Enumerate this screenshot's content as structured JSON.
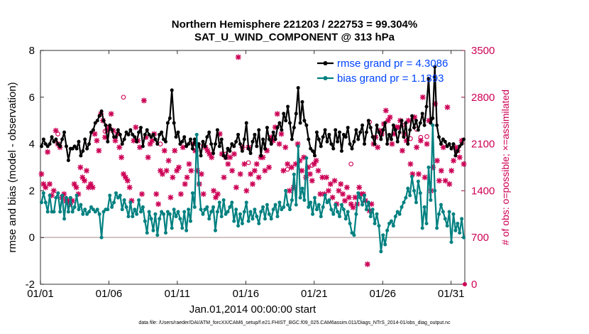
{
  "title_line1": "Northern Hemisphere 221203 / 222753 = 99.304%",
  "title_line2": "SAT_U_WIND_COMPONENT @ 313 hPa",
  "footer": "data file: /Users/raeder/DAI/ATM_forcXX/CAM6_setup/f.e21.FHIST_BGC.f09_025.CAM6assim.011/Diags_NTrS_2014-01/obs_diag_output.nc",
  "colors": {
    "rmse": "#000000",
    "bias": "#008080",
    "obs": "#cc0055",
    "legend_text": "#0044ff",
    "zero_line": "#c8b8b8"
  },
  "chart_data": {
    "type": "line",
    "xlabel": "Jan.01,2014 00:00:00 start",
    "ylabel_left": "rmse and bias (model - observation)",
    "ylabel_right": "# of obs: o=possible; ×=assimilated",
    "x_tick_labels": [
      "01/01",
      "01/06",
      "01/11",
      "01/16",
      "01/21",
      "01/26",
      "01/31"
    ],
    "x_tick_days": [
      1,
      6,
      11,
      16,
      21,
      26,
      31
    ],
    "xlim_days": [
      1,
      32
    ],
    "ylim_left": [
      -2,
      8
    ],
    "y_ticks_left": [
      -2,
      0,
      2,
      4,
      6,
      8
    ],
    "ylim_right": [
      0,
      3500
    ],
    "y_ticks_right": [
      0,
      700,
      1400,
      2100,
      2800,
      3500
    ],
    "grid": false,
    "legend_position": "top-right",
    "series": [
      {
        "name": "rmse grand pr = 4.3086",
        "axis": "left",
        "marker": "dot-line",
        "values": [
          3.9,
          4.2,
          4.0,
          3.9,
          4.0,
          4.3,
          4.1,
          4.2,
          4.0,
          3.9,
          4.2,
          4.5,
          3.9,
          3.3,
          3.8,
          3.8,
          3.9,
          3.8,
          4.1,
          3.5,
          3.7,
          4.2,
          3.8,
          4.0,
          4.5,
          4.6,
          4.9,
          5.0,
          5.2,
          5.4,
          5.0,
          4.8,
          4.1,
          4.8,
          4.6,
          4.3,
          4.3,
          4.6,
          4.4,
          4.0,
          4.2,
          4.5,
          4.4,
          4.6,
          4.4,
          4.3,
          4.1,
          4.5,
          4.7,
          3.9,
          4.4,
          4.6,
          4.4,
          4.3,
          4.4,
          4.2,
          4.0,
          4.4,
          4.5,
          4.2,
          4.1,
          4.9,
          5.1,
          6.3,
          4.9,
          4.3,
          4.5,
          4.0,
          4.1,
          4.3,
          3.9,
          4.0,
          4.2,
          3.8,
          4.2,
          3.7,
          4.0,
          3.5,
          4.1,
          3.9,
          4.3,
          4.5,
          4.0,
          3.6,
          4.0,
          4.6,
          3.9,
          4.2,
          3.5,
          3.4,
          3.8,
          3.7,
          4.0,
          3.9,
          4.1,
          4.4,
          4.0,
          3.7,
          4.2,
          4.9,
          3.8,
          3.6,
          4.1,
          4.4,
          3.9,
          4.6,
          3.5,
          4.2,
          3.8,
          4.7,
          4.2,
          4.0,
          4.5,
          4.2,
          4.7,
          4.9,
          4.6,
          5.3,
          5.0,
          5.6,
          4.9,
          4.2,
          4.7,
          5.3,
          6.4,
          4.9,
          5.8,
          5.0,
          4.8,
          4.2,
          3.8,
          3.7,
          3.5,
          4.5,
          4.2,
          3.9,
          4.3,
          4.6,
          4.1,
          4.4,
          4.0,
          3.8,
          4.6,
          4.1,
          4.5,
          3.7,
          4.4,
          4.3,
          4.7,
          4.0,
          3.8,
          4.1,
          4.6,
          4.2,
          4.5,
          4.8,
          4.0,
          4.5,
          5.0,
          4.7,
          4.3,
          4.0,
          4.8,
          4.5,
          4.2,
          4.6,
          4.9,
          4.0,
          4.4,
          4.2,
          4.8,
          4.6,
          4.1,
          4.5,
          5.0,
          4.3,
          4.9,
          4.0,
          4.6,
          5.2,
          4.7,
          5.0,
          4.6,
          4.9,
          5.3,
          4.8,
          5.6,
          6.8,
          4.9,
          5.1,
          7.3,
          4.8,
          4.3,
          4.0,
          4.2,
          4.1,
          3.9,
          4.0,
          3.8,
          4.0,
          3.5,
          3.7,
          3.9,
          4.0,
          4.2
        ]
      },
      {
        "name": "bias grand pr = 1.1393",
        "axis": "left",
        "marker": "dot-line",
        "values": [
          1.5,
          1.9,
          1.5,
          1.1,
          1.8,
          1.1,
          1.1,
          1.7,
          1.9,
          1.1,
          1.8,
          0.8,
          1.7,
          1.1,
          1.7,
          1.1,
          1.3,
          1.8,
          1.2,
          1.4,
          1.0,
          1.2,
          1.0,
          1.1,
          1.3,
          1.2,
          1.1,
          1.2,
          1.0,
          0.0,
          1.1,
          1.2,
          1.2,
          1.8,
          1.3,
          1.5,
          1.9,
          1.7,
          1.8,
          1.2,
          1.6,
          1.3,
          0.9,
          1.5,
          0.9,
          1.2,
          1.0,
          1.6,
          1.1,
          1.3,
          0.7,
          0.2,
          1.1,
          0.8,
          0.3,
          1.0,
          0.1,
          0.8,
          1.1,
          1.0,
          0.2,
          1.1,
          1.0,
          0.4,
          1.2,
          0.9,
          1.1,
          0.8,
          0.4,
          1.1,
          0.3,
          1.2,
          0.7,
          1.9,
          1.3,
          4.4,
          2.3,
          1.2,
          1.0,
          1.2,
          1.3,
          0.8,
          1.1,
          1.3,
          0.3,
          1.1,
          1.5,
          0.9,
          1.6,
          1.0,
          1.1,
          1.3,
          1.5,
          0.7,
          1.2,
          0.5,
          1.0,
          0.6,
          1.1,
          1.5,
          0.7,
          1.1,
          0.8,
          1.2,
          0.9,
          0.6,
          1.1,
          1.3,
          0.8,
          1.4,
          1.0,
          0.8,
          1.2,
          1.4,
          0.9,
          1.5,
          1.2,
          1.3,
          2.0,
          1.4,
          1.2,
          1.6,
          2.7,
          1.4,
          3.9,
          1.7,
          2.1,
          1.6,
          3.4,
          1.3,
          1.5,
          1.0,
          1.7,
          1.2,
          1.4,
          0.9,
          1.3,
          1.8,
          1.5,
          1.6,
          1.2,
          1.0,
          1.4,
          1.1,
          0.9,
          1.4,
          1.2,
          0.8,
          1.1,
          0.6,
          0.2,
          0.1,
          1.0,
          1.9,
          1.7,
          1.4,
          1.8,
          1.2,
          1.5,
          0.9,
          1.2,
          0.6,
          1.0,
          0.5,
          -0.6,
          0.1,
          -0.3,
          0.3,
          0.6,
          0.7,
          0.5,
          0.9,
          1.1,
          1.0,
          1.3,
          1.5,
          1.7,
          2.1,
          1.8,
          2.6,
          2.0,
          1.5,
          2.4,
          1.9,
          0.4,
          1.3,
          0.6,
          3.0,
          1.6,
          4.8,
          2.0,
          0.4,
          1.0,
          1.4,
          1.1,
          0.8,
          0.5,
          1.1,
          -0.2,
          1.0,
          0.3,
          0.6,
          0.2,
          0.8,
          0.0
        ]
      }
    ],
    "obs_series": [
      {
        "name": "assimilated",
        "axis": "right",
        "marker": "×",
        "values": [
          1650,
          1500,
          1450,
          1980,
          1500,
          1330,
          1400,
          2300,
          2100,
          2050,
          1300,
          1350,
          1250,
          1250,
          1200,
          1250,
          1500,
          1450,
          1350,
          1750,
          1600,
          1550,
          1700,
          1450,
          1500,
          1450,
          2250,
          2150,
          2000,
          2550,
          2450,
          2200,
          2300,
          2350,
          2550,
          2300,
          2150,
          2250,
          2050,
          1900,
          1650,
          1600,
          1550,
          1450,
          1250,
          2150,
          2350,
          2150,
          2050,
          1350,
          2750,
          2200,
          1900,
          2100,
          2150,
          2250,
          1350,
          1200,
          1700,
          1650,
          2000,
          1700,
          1850,
          1300,
          1600,
          2000,
          1700,
          1750,
          1350,
          2050,
          1500,
          1600,
          1800,
          1700,
          2100,
          2000,
          1700,
          1500,
          1650,
          1350,
          2050,
          2000,
          1950,
          1900,
          1400,
          1300,
          1350,
          2250,
          1950,
          1600,
          1900,
          1800,
          1900,
          1700,
          1950,
          1450,
          3400,
          1650,
          2050,
          1800,
          1400,
          2050,
          1650,
          1500,
          1700,
          1800,
          1600,
          1900,
          1900,
          1700,
          2000,
          1750,
          2200,
          2150,
          2350,
          2550,
          2100,
          2250,
          1700,
          2050,
          1800,
          1400,
          1750,
          1450,
          1800,
          2100,
          1850,
          1700,
          1900,
          1600,
          1750,
          1650,
          1550,
          1800,
          1850,
          1700,
          1350,
          1600,
          1350,
          1600,
          1400,
          1500,
          1300,
          1550,
          1200,
          1400,
          1500,
          1350,
          1250,
          1450,
          1300,
          1200,
          1150,
          1300,
          1200,
          1450,
          1350,
          1350,
          1250,
          300,
          1100,
          1200,
          2100,
          2200,
          2050,
          2300,
          2250,
          2400,
          2600,
          2450,
          2500,
          2100,
          2250,
          2350,
          2350,
          2450,
          2000,
          2250,
          2150,
          2450,
          1800,
          1650,
          2500,
          2050,
          1650,
          2150,
          2800,
          1600,
          2100,
          2450,
          1400,
          1750,
          2700,
          1850,
          1550,
          1700,
          2050,
          1550,
          2650,
          1500,
          1700,
          1850,
          2050,
          2000,
          1900,
          2150,
          1800
        ]
      },
      {
        "name": "possible",
        "axis": "right",
        "marker": "o",
        "values": [
          2250,
          2290,
          2800,
          2100,
          2080,
          1950,
          1820,
          1720,
          1780,
          1800,
          2430,
          2380,
          2180,
          2320,
          2200,
          2210
        ]
      }
    ]
  }
}
